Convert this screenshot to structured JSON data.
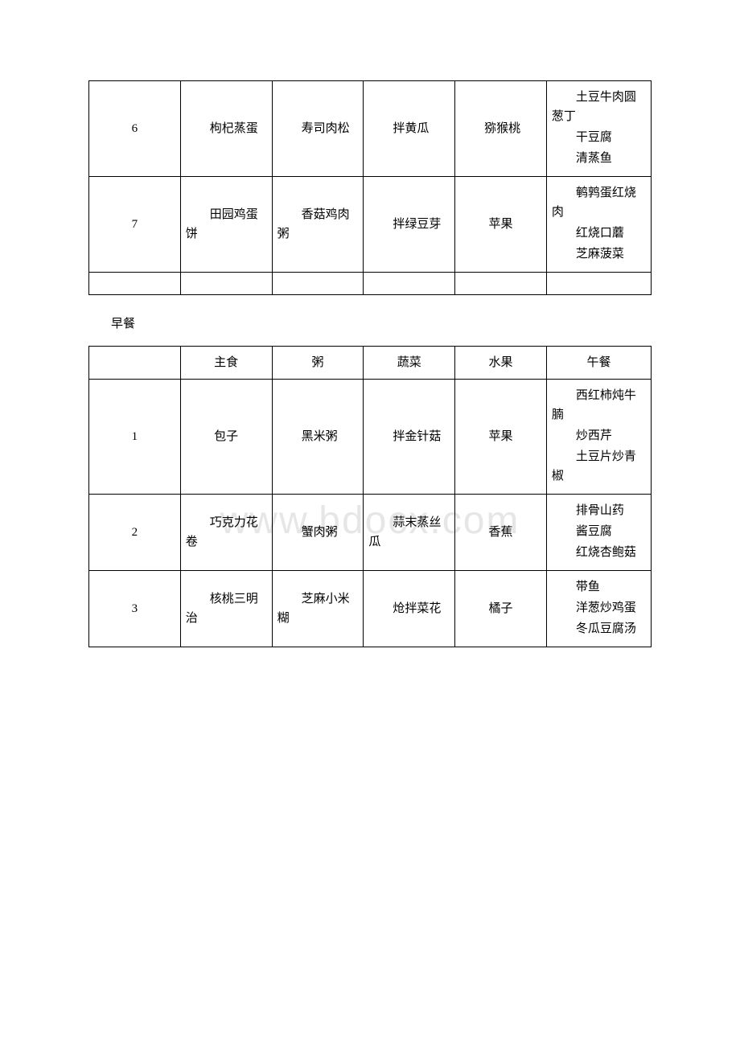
{
  "watermark": "www.bdocx.com",
  "section_label": "早餐",
  "table1": {
    "rows": [
      {
        "num": "6",
        "main": "枸杞蒸蛋",
        "porridge": "寿司肉松",
        "veg": "拌黄瓜",
        "fruit": "猕猴桃",
        "lunch": [
          "土豆牛肉圆葱丁",
          "干豆腐",
          "清蒸鱼"
        ]
      },
      {
        "num": "7",
        "main": "田园鸡蛋饼",
        "porridge": "香菇鸡肉粥",
        "veg": "拌绿豆芽",
        "fruit": "苹果",
        "lunch": [
          "鹌鹑蛋红烧肉",
          "红烧口蘑",
          "芝麻菠菜"
        ]
      }
    ]
  },
  "table2": {
    "headers": [
      "",
      "主食",
      "粥",
      "蔬菜",
      "水果",
      "午餐"
    ],
    "rows": [
      {
        "num": "1",
        "main": "包子",
        "porridge": "黑米粥",
        "veg": "拌金针菇",
        "fruit": "苹果",
        "lunch": [
          "西红柿炖牛腩",
          "炒西芹",
          "土豆片炒青椒"
        ]
      },
      {
        "num": "2",
        "main": "巧克力花卷",
        "porridge": "蟹肉粥",
        "veg": "蒜末蒸丝瓜",
        "fruit": "香蕉",
        "lunch": [
          "排骨山药",
          "酱豆腐",
          "红烧杏鲍菇"
        ]
      },
      {
        "num": "3",
        "main": "核桃三明治",
        "porridge": "芝麻小米糊",
        "veg": "炝拌菜花",
        "fruit": "橘子",
        "lunch": [
          "带鱼",
          "洋葱炒鸡蛋",
          "冬瓜豆腐汤"
        ]
      }
    ]
  }
}
